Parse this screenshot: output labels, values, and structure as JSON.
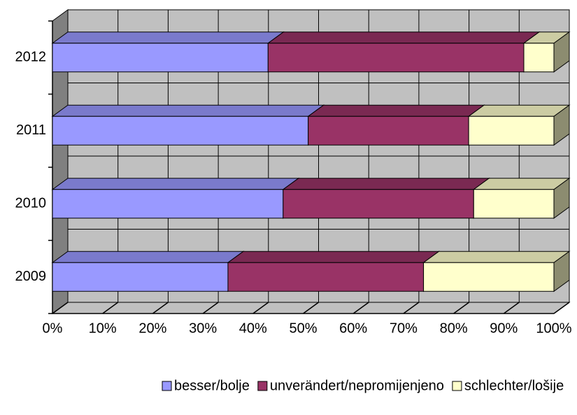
{
  "chart_data": {
    "type": "stacked_bar_3d_horizontal",
    "categories": [
      "2009",
      "2010",
      "2011",
      "2012"
    ],
    "series": [
      {
        "name": "besser/bolje",
        "color": "#9999ff",
        "values": [
          35,
          46,
          51,
          43
        ]
      },
      {
        "name": "unverändert/nepromijenjeno",
        "color": "#993366",
        "values": [
          39,
          38,
          32,
          51
        ]
      },
      {
        "name": "schlechter/lošije",
        "color": "#ffffcc",
        "values": [
          26,
          16,
          17,
          6
        ]
      }
    ],
    "xlim": [
      0,
      100
    ],
    "xticks": [
      {
        "value": 0,
        "label": "0%"
      },
      {
        "value": 10,
        "label": "10%"
      },
      {
        "value": 20,
        "label": "20%"
      },
      {
        "value": 30,
        "label": "30%"
      },
      {
        "value": 40,
        "label": "40%"
      },
      {
        "value": 50,
        "label": "50%"
      },
      {
        "value": 60,
        "label": "60%"
      },
      {
        "value": 70,
        "label": "70%"
      },
      {
        "value": 80,
        "label": "80%"
      },
      {
        "value": 90,
        "label": "90%"
      },
      {
        "value": 100,
        "label": "100%"
      }
    ],
    "grid": true,
    "legend": "bottom"
  }
}
